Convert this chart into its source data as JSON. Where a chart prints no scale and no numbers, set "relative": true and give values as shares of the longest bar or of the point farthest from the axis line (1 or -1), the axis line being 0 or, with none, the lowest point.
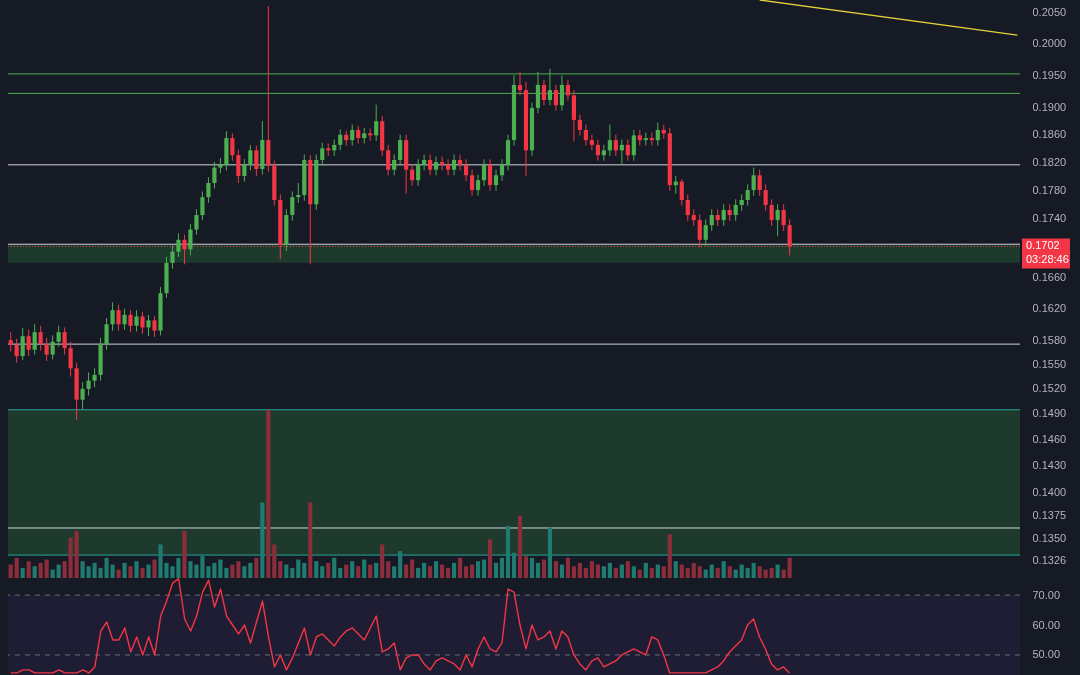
{
  "chart_data": [
    {
      "type": "candlestick",
      "log": true,
      "tick_labels": "y",
      "categories": [
        null,
        null,
        null,
        null,
        null,
        null,
        null,
        null,
        null,
        null,
        null,
        null,
        null,
        null,
        null,
        null,
        null,
        null,
        null,
        null,
        null,
        null,
        null,
        null,
        null,
        null,
        null,
        null,
        null,
        null,
        null,
        null,
        null,
        null,
        null,
        null,
        null,
        null,
        null,
        null,
        null,
        null,
        null,
        null,
        null,
        null,
        null,
        null,
        null,
        null,
        null,
        null,
        null,
        null,
        null,
        null,
        null,
        null,
        null,
        null,
        null,
        null,
        null,
        null,
        null,
        null,
        null,
        null,
        null,
        null,
        null,
        null,
        null,
        null,
        null,
        null,
        null,
        null,
        null,
        null,
        null,
        null,
        null,
        null,
        null,
        null,
        null,
        null,
        null,
        null,
        null,
        null,
        null,
        null,
        null,
        null,
        null,
        null,
        null,
        null,
        null,
        null,
        null,
        null,
        null,
        null,
        null,
        null,
        null,
        null,
        null,
        null,
        null,
        null,
        null,
        null,
        null,
        null,
        null,
        null,
        null,
        null,
        null,
        null,
        null,
        null,
        null,
        null,
        null,
        null,
        null,
        null,
        null,
        null,
        null,
        null,
        null,
        null,
        null,
        null,
        null,
        null,
        null,
        null,
        null,
        null,
        null,
        null,
        null,
        null,
        null,
        null,
        null,
        null,
        null,
        null,
        null,
        null,
        null,
        null,
        null,
        null,
        null,
        null,
        null,
        null,
        null,
        null,
        null
      ],
      "ohlc": [
        [
          0.158,
          0.159,
          0.1566,
          0.1574
        ],
        [
          0.1574,
          0.1582,
          0.1552,
          0.156
        ],
        [
          0.156,
          0.1595,
          0.1555,
          0.1585
        ],
        [
          0.1585,
          0.1593,
          0.156,
          0.1568
        ],
        [
          0.1568,
          0.16,
          0.1562,
          0.159
        ],
        [
          0.159,
          0.1598,
          0.1567,
          0.1575
        ],
        [
          0.1575,
          0.1583,
          0.1554,
          0.1562
        ],
        [
          0.1562,
          0.1586,
          0.1556,
          0.1578
        ],
        [
          0.1578,
          0.1598,
          0.1572,
          0.159
        ],
        [
          0.159,
          0.1596,
          0.1562,
          0.157
        ],
        [
          0.157,
          0.1578,
          0.1535,
          0.1545
        ],
        [
          0.1545,
          0.1552,
          0.1483,
          0.1507
        ],
        [
          0.1507,
          0.1528,
          0.1495,
          0.152
        ],
        [
          0.152,
          0.154,
          0.1512,
          0.153
        ],
        [
          0.153,
          0.1545,
          0.1522,
          0.1537
        ],
        [
          0.1537,
          0.1583,
          0.153,
          0.1575
        ],
        [
          0.1575,
          0.1608,
          0.1568,
          0.16
        ],
        [
          0.16,
          0.1628,
          0.1592,
          0.1618
        ],
        [
          0.1618,
          0.1625,
          0.1592,
          0.16
        ],
        [
          0.16,
          0.162,
          0.1593,
          0.1612
        ],
        [
          0.1612,
          0.1618,
          0.159,
          0.1598
        ],
        [
          0.1598,
          0.1618,
          0.1591,
          0.161
        ],
        [
          0.161,
          0.1616,
          0.1588,
          0.1596
        ],
        [
          0.1596,
          0.1612,
          0.1585,
          0.1605
        ],
        [
          0.1605,
          0.161,
          0.1584,
          0.1592
        ],
        [
          0.1592,
          0.1648,
          0.1586,
          0.164
        ],
        [
          0.164,
          0.1688,
          0.1634,
          0.168
        ],
        [
          0.168,
          0.1703,
          0.1672,
          0.1695
        ],
        [
          0.1695,
          0.172,
          0.1688,
          0.1711
        ],
        [
          0.1711,
          0.1718,
          0.1678,
          0.1698
        ],
        [
          0.1698,
          0.1733,
          0.169,
          0.1725
        ],
        [
          0.1725,
          0.1753,
          0.1718,
          0.1745
        ],
        [
          0.1745,
          0.1778,
          0.1738,
          0.177
        ],
        [
          0.177,
          0.1798,
          0.1762,
          0.179
        ],
        [
          0.179,
          0.182,
          0.1782,
          0.1812
        ],
        [
          0.1812,
          0.1826,
          0.1804,
          0.1816
        ],
        [
          0.1816,
          0.1865,
          0.1808,
          0.1855
        ],
        [
          0.1855,
          0.1862,
          0.1822,
          0.183
        ],
        [
          0.183,
          0.1838,
          0.179,
          0.18
        ],
        [
          0.18,
          0.1824,
          0.1792,
          0.1816
        ],
        [
          0.1816,
          0.1845,
          0.1808,
          0.1837
        ],
        [
          0.1837,
          0.1844,
          0.18,
          0.181
        ],
        [
          0.181,
          0.188,
          0.1802,
          0.1852
        ],
        [
          0.1852,
          0.206,
          0.1806,
          0.1815
        ],
        [
          0.1815,
          0.1822,
          0.1758,
          0.1766
        ],
        [
          0.1766,
          0.1774,
          0.1685,
          0.1704
        ],
        [
          0.1704,
          0.1753,
          0.1696,
          0.1745
        ],
        [
          0.1745,
          0.1778,
          0.1737,
          0.177
        ],
        [
          0.177,
          0.179,
          0.1762,
          0.1773
        ],
        [
          0.1773,
          0.1831,
          0.1765,
          0.1823
        ],
        [
          0.1823,
          0.183,
          0.1678,
          0.176
        ],
        [
          0.176,
          0.1831,
          0.1752,
          0.1823
        ],
        [
          0.1823,
          0.1848,
          0.1815,
          0.184
        ],
        [
          0.184,
          0.1847,
          0.1829,
          0.1837
        ],
        [
          0.1837,
          0.1853,
          0.1829,
          0.1845
        ],
        [
          0.1845,
          0.1868,
          0.1837,
          0.186
        ],
        [
          0.186,
          0.1866,
          0.1844,
          0.1852
        ],
        [
          0.1852,
          0.1875,
          0.1844,
          0.1867
        ],
        [
          0.1867,
          0.1873,
          0.1847,
          0.1855
        ],
        [
          0.1855,
          0.187,
          0.1847,
          0.1862
        ],
        [
          0.1862,
          0.1869,
          0.1851,
          0.1859
        ],
        [
          0.1859,
          0.1905,
          0.1851,
          0.188
        ],
        [
          0.188,
          0.1888,
          0.1829,
          0.1837
        ],
        [
          0.1837,
          0.1845,
          0.1801,
          0.1809
        ],
        [
          0.1809,
          0.1831,
          0.1801,
          0.1823
        ],
        [
          0.1823,
          0.186,
          0.1815,
          0.1852
        ],
        [
          0.1852,
          0.186,
          0.1775,
          0.1809
        ],
        [
          0.1809,
          0.1817,
          0.1786,
          0.1794
        ],
        [
          0.1794,
          0.1824,
          0.1786,
          0.1816
        ],
        [
          0.1816,
          0.1831,
          0.1808,
          0.1823
        ],
        [
          0.1823,
          0.1831,
          0.1801,
          0.1809
        ],
        [
          0.1809,
          0.1828,
          0.1801,
          0.182
        ],
        [
          0.182,
          0.1828,
          0.1808,
          0.1816
        ],
        [
          0.1816,
          0.1824,
          0.1801,
          0.1809
        ],
        [
          0.1809,
          0.1831,
          0.1801,
          0.1823
        ],
        [
          0.1823,
          0.1831,
          0.1808,
          0.1816
        ],
        [
          0.1816,
          0.1824,
          0.1793,
          0.1801
        ],
        [
          0.1801,
          0.1809,
          0.1772,
          0.178
        ],
        [
          0.178,
          0.1802,
          0.1772,
          0.1794
        ],
        [
          0.1794,
          0.1824,
          0.1786,
          0.1816
        ],
        [
          0.1816,
          0.1824,
          0.1779,
          0.1787
        ],
        [
          0.1787,
          0.1809,
          0.1779,
          0.1801
        ],
        [
          0.1801,
          0.1824,
          0.1793,
          0.1816
        ],
        [
          0.1816,
          0.186,
          0.1808,
          0.1852
        ],
        [
          0.1852,
          0.195,
          0.1844,
          0.1935
        ],
        [
          0.1935,
          0.1955,
          0.1919,
          0.1927
        ],
        [
          0.1927,
          0.194,
          0.18,
          0.1837
        ],
        [
          0.1837,
          0.1908,
          0.1829,
          0.19
        ],
        [
          0.19,
          0.1955,
          0.1892,
          0.1935
        ],
        [
          0.1935,
          0.1943,
          0.1904,
          0.1912
        ],
        [
          0.1912,
          0.196,
          0.1904,
          0.1927
        ],
        [
          0.1927,
          0.1935,
          0.1896,
          0.1904
        ],
        [
          0.1904,
          0.195,
          0.1896,
          0.1935
        ],
        [
          0.1935,
          0.1943,
          0.1911,
          0.1919
        ],
        [
          0.1919,
          0.1927,
          0.185,
          0.1882
        ],
        [
          0.1882,
          0.189,
          0.1859,
          0.1867
        ],
        [
          0.1867,
          0.1875,
          0.1844,
          0.1852
        ],
        [
          0.1852,
          0.186,
          0.1837,
          0.1845
        ],
        [
          0.1845,
          0.1853,
          0.1822,
          0.183
        ],
        [
          0.183,
          0.1845,
          0.1822,
          0.1837
        ],
        [
          0.1837,
          0.1875,
          0.1829,
          0.1852
        ],
        [
          0.1852,
          0.186,
          0.1829,
          0.1837
        ],
        [
          0.1837,
          0.1853,
          0.1816,
          0.1845
        ],
        [
          0.1845,
          0.1853,
          0.1822,
          0.183
        ],
        [
          0.183,
          0.1867,
          0.1822,
          0.1859
        ],
        [
          0.1859,
          0.1867,
          0.1844,
          0.1852
        ],
        [
          0.1852,
          0.1863,
          0.1844,
          0.1855
        ],
        [
          0.1855,
          0.1863,
          0.1844,
          0.1852
        ],
        [
          0.1852,
          0.1878,
          0.1844,
          0.1867
        ],
        [
          0.1867,
          0.1875,
          0.1854,
          0.1862
        ],
        [
          0.1862,
          0.187,
          0.1779,
          0.1787
        ],
        [
          0.1787,
          0.18,
          0.1775,
          0.1792
        ],
        [
          0.1792,
          0.1795,
          0.1758,
          0.1766
        ],
        [
          0.1766,
          0.1774,
          0.1737,
          0.1745
        ],
        [
          0.1745,
          0.1753,
          0.173,
          0.1738
        ],
        [
          0.1738,
          0.1746,
          0.1701,
          0.1711
        ],
        [
          0.1711,
          0.1739,
          0.1703,
          0.1731
        ],
        [
          0.1731,
          0.1753,
          0.1723,
          0.1745
        ],
        [
          0.1745,
          0.1753,
          0.173,
          0.1738
        ],
        [
          0.1738,
          0.176,
          0.173,
          0.1752
        ],
        [
          0.1752,
          0.176,
          0.1737,
          0.1745
        ],
        [
          0.1745,
          0.1767,
          0.1737,
          0.1759
        ],
        [
          0.1759,
          0.1774,
          0.1751,
          0.1766
        ],
        [
          0.1766,
          0.1788,
          0.1758,
          0.178
        ],
        [
          0.178,
          0.1812,
          0.1772,
          0.1801
        ],
        [
          0.1801,
          0.1809,
          0.1772,
          0.178
        ],
        [
          0.178,
          0.1788,
          0.1751,
          0.1759
        ],
        [
          0.1759,
          0.1767,
          0.173,
          0.1738
        ],
        [
          0.1738,
          0.176,
          0.1716,
          0.1752
        ],
        [
          0.1752,
          0.176,
          0.1723,
          0.1731
        ],
        [
          0.1731,
          0.1739,
          0.169,
          0.1702
        ],
        null,
        null,
        null,
        null,
        null,
        null,
        null,
        null,
        null,
        null,
        null,
        null,
        null,
        null,
        null,
        null,
        null,
        null,
        null,
        null,
        null,
        null,
        null,
        null,
        null,
        null,
        null,
        null,
        null,
        null,
        null,
        null,
        null,
        null,
        null,
        null,
        null,
        null
      ],
      "colors": [
        "#f23645",
        "#f23645",
        "#4caf50",
        "#f23645",
        "#4caf50",
        "#f23645",
        "#f23645",
        "#4caf50",
        "#4caf50",
        "#f23645",
        "#f23645",
        "#f23645",
        "#4caf50",
        "#4caf50",
        "#4caf50",
        "#4caf50",
        "#4caf50",
        "#4caf50",
        "#f23645",
        "#4caf50",
        "#f23645",
        "#4caf50",
        "#f23645",
        "#4caf50",
        "#f23645",
        "#4caf50",
        "#4caf50",
        "#4caf50",
        "#4caf50",
        "#f23645",
        "#4caf50",
        "#4caf50",
        "#4caf50",
        "#4caf50",
        "#4caf50",
        "#4caf50",
        "#4caf50",
        "#f23645",
        "#f23645",
        "#4caf50",
        "#4caf50",
        "#f23645",
        "#4caf50",
        "#f23645",
        "#f23645",
        "#f23645",
        "#4caf50",
        "#4caf50",
        "#4caf50",
        "#4caf50",
        "#f23645",
        "#4caf50",
        "#4caf50",
        "#f23645",
        "#4caf50",
        "#4caf50",
        "#f23645",
        "#4caf50",
        "#f23645",
        "#4caf50",
        "#f23645",
        "#4caf50",
        "#f23645",
        "#f23645",
        "#4caf50",
        "#4caf50",
        "#f23645",
        "#f23645",
        "#4caf50",
        "#4caf50",
        "#f23645",
        "#4caf50",
        "#f23645",
        "#f23645",
        "#4caf50",
        "#f23645",
        "#f23645",
        "#f23645",
        "#4caf50",
        "#4caf50",
        "#f23645",
        "#4caf50",
        "#4caf50",
        "#4caf50",
        "#4caf50",
        "#f23645",
        "#f23645",
        "#4caf50",
        "#4caf50",
        "#f23645",
        "#4caf50",
        "#f23645",
        "#4caf50",
        "#f23645",
        "#f23645",
        "#f23645",
        "#f23645",
        "#f23645",
        "#f23645",
        "#4caf50",
        "#4caf50",
        "#f23645",
        "#4caf50",
        "#f23645",
        "#4caf50",
        "#f23645",
        "#4caf50",
        "#f23645",
        "#4caf50",
        "#f23645",
        "#f23645",
        "#4caf50",
        "#f23645",
        "#f23645",
        "#f23645",
        "#f23645",
        "#4caf50",
        "#4caf50",
        "#f23645",
        "#4caf50",
        "#f23645",
        "#4caf50",
        "#4caf50",
        "#4caf50",
        "#4caf50",
        "#f23645",
        "#f23645",
        "#f23645",
        "#4caf50",
        "#f23645",
        "#f23645",
        null,
        null,
        null,
        null,
        null,
        null,
        null,
        null,
        null,
        null,
        null,
        null,
        null,
        null,
        null,
        null,
        null,
        null,
        null,
        null,
        null,
        null,
        null,
        null,
        null,
        null,
        null,
        null,
        null,
        null,
        null,
        null,
        null,
        null,
        null,
        null,
        null,
        null
      ],
      "series": [
        {
          "type": "line",
          "color": "#e6d33a",
          "values": [
            null,
            null,
            null,
            null,
            null,
            null,
            null,
            null,
            null,
            null,
            null,
            null,
            null,
            null,
            null,
            null,
            null,
            null,
            null,
            null,
            null,
            null,
            null,
            null,
            null,
            null,
            null,
            null,
            null,
            null,
            null,
            null,
            null,
            null,
            null,
            null,
            null,
            null,
            null,
            null,
            null,
            null,
            null,
            null,
            null,
            null,
            null,
            null,
            null,
            null,
            null,
            null,
            null,
            null,
            null,
            null,
            null,
            null,
            null,
            null,
            null,
            null,
            null,
            null,
            null,
            null,
            null,
            null,
            null,
            null,
            null,
            null,
            null,
            null,
            null,
            null,
            null,
            null,
            null,
            null,
            null,
            null,
            null,
            null,
            null,
            null,
            null,
            null,
            null,
            null,
            null,
            null,
            null,
            null,
            null,
            null,
            null,
            null,
            null,
            null,
            null,
            null,
            null,
            null,
            null,
            null,
            null,
            null,
            null,
            null,
            null,
            null,
            null,
            null,
            null,
            null,
            null,
            null,
            null,
            null,
            null,
            null,
            null,
            null,
            null,
            0.207,
            null,
            null,
            null,
            null,
            null,
            null,
            null,
            null,
            null,
            null,
            null,
            null,
            null,
            null,
            null,
            null,
            null,
            null,
            null,
            null,
            null,
            null,
            null,
            null,
            null,
            null,
            null,
            null,
            null,
            null,
            null,
            null,
            null,
            null,
            null,
            null,
            null,
            null,
            null,
            null,
            null,
            null,
            0.2013
          ]
        }
      ],
      "ylim": [
        0.1308,
        0.207
      ],
      "yticks": [
        {
          "value": 0.205,
          "label": "0.2050"
        },
        {
          "value": 0.2,
          "label": "0.2000"
        },
        {
          "value": 0.195,
          "label": "0.1950"
        },
        {
          "value": 0.19,
          "label": "0.1900"
        },
        {
          "value": 0.186,
          "label": "0.1860"
        },
        {
          "value": 0.182,
          "label": "0.1820"
        },
        {
          "value": 0.178,
          "label": "0.1780"
        },
        {
          "value": 0.174,
          "label": "0.1740"
        },
        {
          "value": 0.166,
          "label": "0.1660"
        },
        {
          "value": 0.162,
          "label": "0.1620"
        },
        {
          "value": 0.158,
          "label": "0.1580"
        },
        {
          "value": 0.155,
          "label": "0.1550"
        },
        {
          "value": 0.152,
          "label": "0.1520"
        },
        {
          "value": 0.149,
          "label": "0.1490"
        },
        {
          "value": 0.146,
          "label": "0.1460"
        },
        {
          "value": 0.143,
          "label": "0.1430"
        },
        {
          "value": 0.14,
          "label": "0.1400"
        },
        {
          "value": 0.1375,
          "label": "0.1375"
        },
        {
          "value": 0.135,
          "label": "0.1350"
        },
        {
          "value": 0.1326,
          "label": "0.1326"
        }
      ],
      "bands": [
        {
          "axis": "y",
          "from": 0.1332,
          "to": 0.1495,
          "color": "#1e3a2c"
        },
        {
          "axis": "y",
          "from": 0.168,
          "to": 0.1704,
          "color": "#1e3a2c"
        }
      ],
      "ref_lines": [
        {
          "axis": "y",
          "value": 0.1952,
          "color": "#4caf50"
        },
        {
          "axis": "y",
          "value": 0.1922,
          "color": "#4caf50"
        },
        {
          "axis": "y",
          "value": 0.1816,
          "color": "#d1d4dc"
        },
        {
          "axis": "y",
          "value": 0.1705,
          "color": "#d1d4dc"
        },
        {
          "axis": "y",
          "value": 0.1575,
          "color": "#d1d4dc"
        },
        {
          "axis": "y",
          "value": 0.1361,
          "color": "#d1d4dc"
        },
        {
          "axis": "y",
          "value": 0.1495,
          "color": "#26a69a"
        },
        {
          "axis": "y",
          "value": 0.1332,
          "color": "#26a69a"
        },
        {
          "axis": "y",
          "value": 0.1702,
          "color": "#f23645",
          "line_style": "dotted",
          "label": "0.1702"
        }
      ],
      "annotations": [
        "03:28:46"
      ]
    },
    {
      "type": "bar",
      "relative": true,
      "categories": [
        null,
        null,
        null,
        null,
        null,
        null,
        null,
        null,
        null,
        null,
        null,
        null,
        null,
        null,
        null,
        null,
        null,
        null,
        null,
        null,
        null,
        null,
        null,
        null,
        null,
        null,
        null,
        null,
        null,
        null,
        null,
        null,
        null,
        null,
        null,
        null,
        null,
        null,
        null,
        null,
        null,
        null,
        null,
        null,
        null,
        null,
        null,
        null,
        null,
        null,
        null,
        null,
        null,
        null,
        null,
        null,
        null,
        null,
        null,
        null,
        null,
        null,
        null,
        null,
        null,
        null,
        null,
        null,
        null,
        null,
        null,
        null,
        null,
        null,
        null,
        null,
        null,
        null,
        null,
        null,
        null,
        null,
        null,
        null,
        null,
        null,
        null,
        null,
        null,
        null,
        null,
        null,
        null,
        null,
        null,
        null,
        null,
        null,
        null,
        null,
        null,
        null,
        null,
        null,
        null,
        null,
        null,
        null,
        null,
        null,
        null,
        null,
        null,
        null,
        null,
        null,
        null,
        null,
        null,
        null,
        null,
        null,
        null,
        null,
        null,
        null,
        null,
        null,
        null,
        null,
        null,
        null,
        null,
        null,
        null,
        null,
        null,
        null,
        null,
        null,
        null,
        null,
        null,
        null,
        null,
        null,
        null,
        null,
        null,
        null,
        null,
        null,
        null,
        null,
        null,
        null,
        null,
        null,
        null,
        null,
        null,
        null,
        null,
        null,
        null,
        null,
        null,
        null,
        null
      ],
      "values": [
        0.08,
        0.12,
        0.06,
        0.1,
        0.07,
        0.09,
        0.11,
        0.05,
        0.08,
        0.1,
        0.24,
        0.28,
        0.1,
        0.07,
        0.09,
        0.06,
        0.12,
        0.08,
        0.05,
        0.09,
        0.07,
        0.1,
        0.06,
        0.08,
        0.11,
        0.2,
        0.09,
        0.07,
        0.12,
        0.28,
        0.1,
        0.08,
        0.13,
        0.07,
        0.09,
        0.11,
        0.06,
        0.08,
        0.1,
        0.07,
        0.09,
        0.12,
        0.45,
        1,
        0.2,
        0.1,
        0.08,
        0.06,
        0.11,
        0.09,
        0.45,
        0.1,
        0.07,
        0.09,
        0.12,
        0.06,
        0.08,
        0.1,
        0.07,
        0.11,
        0.08,
        0.09,
        0.2,
        0.1,
        0.07,
        0.16,
        0.08,
        0.11,
        0.06,
        0.09,
        0.07,
        0.1,
        0.08,
        0.06,
        0.09,
        0.12,
        0.07,
        0.08,
        0.1,
        0.11,
        0.23,
        0.09,
        0.12,
        0.31,
        0.15,
        0.37,
        0.13,
        0.12,
        0.09,
        0.11,
        0.3,
        0.1,
        0.08,
        0.12,
        0.07,
        0.09,
        0.06,
        0.1,
        0.08,
        0.07,
        0.09,
        0.06,
        0.08,
        0.1,
        0.07,
        0.05,
        0.09,
        0.06,
        0.08,
        0.07,
        0.26,
        0.1,
        0.08,
        0.06,
        0.09,
        0.07,
        0.05,
        0.08,
        0.06,
        0.1,
        0.07,
        0.05,
        0.08,
        0.06,
        0.09,
        0.07,
        0.05,
        0.06,
        0.08,
        0.05,
        0.12,
        null,
        null,
        null,
        null,
        null,
        null,
        null,
        null,
        null,
        null,
        null,
        null,
        null,
        null,
        null,
        null,
        null,
        null,
        null,
        null,
        null,
        null,
        null,
        null,
        null,
        null,
        null,
        null,
        null,
        null,
        null,
        null,
        null,
        null,
        null,
        null,
        null,
        null
      ],
      "colors": [
        "#8b2d3a",
        "#8b2d3a",
        "#1f7a70",
        "#8b2d3a",
        "#1f7a70",
        "#8b2d3a",
        "#8b2d3a",
        "#1f7a70",
        "#1f7a70",
        "#8b2d3a",
        "#8b2d3a",
        "#8b2d3a",
        "#1f7a70",
        "#1f7a70",
        "#1f7a70",
        "#1f7a70",
        "#1f7a70",
        "#1f7a70",
        "#8b2d3a",
        "#1f7a70",
        "#8b2d3a",
        "#1f7a70",
        "#8b2d3a",
        "#1f7a70",
        "#8b2d3a",
        "#1f7a70",
        "#1f7a70",
        "#1f7a70",
        "#1f7a70",
        "#8b2d3a",
        "#1f7a70",
        "#1f7a70",
        "#1f7a70",
        "#1f7a70",
        "#1f7a70",
        "#1f7a70",
        "#1f7a70",
        "#8b2d3a",
        "#8b2d3a",
        "#1f7a70",
        "#1f7a70",
        "#8b2d3a",
        "#1f7a70",
        "#8b2d3a",
        "#8b2d3a",
        "#8b2d3a",
        "#1f7a70",
        "#1f7a70",
        "#1f7a70",
        "#1f7a70",
        "#8b2d3a",
        "#1f7a70",
        "#1f7a70",
        "#8b2d3a",
        "#1f7a70",
        "#1f7a70",
        "#8b2d3a",
        "#1f7a70",
        "#8b2d3a",
        "#1f7a70",
        "#8b2d3a",
        "#1f7a70",
        "#8b2d3a",
        "#8b2d3a",
        "#1f7a70",
        "#1f7a70",
        "#8b2d3a",
        "#8b2d3a",
        "#1f7a70",
        "#1f7a70",
        "#8b2d3a",
        "#1f7a70",
        "#8b2d3a",
        "#8b2d3a",
        "#1f7a70",
        "#8b2d3a",
        "#8b2d3a",
        "#8b2d3a",
        "#1f7a70",
        "#1f7a70",
        "#8b2d3a",
        "#1f7a70",
        "#1f7a70",
        "#1f7a70",
        "#1f7a70",
        "#8b2d3a",
        "#8b2d3a",
        "#1f7a70",
        "#1f7a70",
        "#8b2d3a",
        "#1f7a70",
        "#8b2d3a",
        "#1f7a70",
        "#8b2d3a",
        "#8b2d3a",
        "#8b2d3a",
        "#8b2d3a",
        "#8b2d3a",
        "#8b2d3a",
        "#1f7a70",
        "#1f7a70",
        "#8b2d3a",
        "#1f7a70",
        "#8b2d3a",
        "#1f7a70",
        "#8b2d3a",
        "#1f7a70",
        "#8b2d3a",
        "#1f7a70",
        "#8b2d3a",
        "#8b2d3a",
        "#1f7a70",
        "#8b2d3a",
        "#8b2d3a",
        "#8b2d3a",
        "#8b2d3a",
        "#1f7a70",
        "#1f7a70",
        "#8b2d3a",
        "#1f7a70",
        "#8b2d3a",
        "#1f7a70",
        "#1f7a70",
        "#1f7a70",
        "#1f7a70",
        "#8b2d3a",
        "#8b2d3a",
        "#8b2d3a",
        "#1f7a70",
        "#8b2d3a",
        "#8b2d3a",
        null,
        null,
        null,
        null,
        null,
        null,
        null,
        null,
        null,
        null,
        null,
        null,
        null,
        null,
        null,
        null,
        null,
        null,
        null,
        null,
        null,
        null,
        null,
        null,
        null,
        null,
        null,
        null,
        null,
        null,
        null,
        null,
        null,
        null,
        null,
        null,
        null,
        null
      ]
    },
    {
      "type": "line",
      "tick_labels": "y",
      "categories": [
        null,
        null,
        null,
        null,
        null,
        null,
        null,
        null,
        null,
        null,
        null,
        null,
        null,
        null,
        null,
        null,
        null,
        null,
        null,
        null,
        null,
        null,
        null,
        null,
        null,
        null,
        null,
        null,
        null,
        null,
        null,
        null,
        null,
        null,
        null,
        null,
        null,
        null,
        null,
        null,
        null,
        null,
        null,
        null,
        null,
        null,
        null,
        null,
        null,
        null,
        null,
        null,
        null,
        null,
        null,
        null,
        null,
        null,
        null,
        null,
        null,
        null,
        null,
        null,
        null,
        null,
        null,
        null,
        null,
        null,
        null,
        null,
        null,
        null,
        null,
        null,
        null,
        null,
        null,
        null,
        null,
        null,
        null,
        null,
        null,
        null,
        null,
        null,
        null,
        null,
        null,
        null,
        null,
        null,
        null,
        null,
        null,
        null,
        null,
        null,
        null,
        null,
        null,
        null,
        null,
        null,
        null,
        null,
        null,
        null,
        null,
        null,
        null,
        null,
        null,
        null,
        null,
        null,
        null,
        null,
        null,
        null,
        null,
        null,
        null,
        null,
        null,
        null,
        null,
        null,
        null,
        null,
        null,
        null,
        null,
        null,
        null,
        null,
        null,
        null,
        null,
        null,
        null,
        null,
        null,
        null,
        null,
        null,
        null,
        null,
        null,
        null,
        null,
        null,
        null,
        null,
        null,
        null,
        null,
        null,
        null,
        null,
        null,
        null,
        null,
        null,
        null,
        null,
        null
      ],
      "series": [
        {
          "color": "#f23645",
          "values": [
            44,
            44,
            45,
            45,
            44,
            44,
            44,
            44,
            45,
            44,
            44,
            44,
            45,
            44,
            46,
            58,
            61,
            55,
            55,
            59,
            51,
            56,
            50,
            56,
            50,
            63,
            68,
            74,
            75.5,
            62,
            58,
            63,
            71,
            75,
            66,
            72,
            63,
            60,
            57,
            60,
            54,
            61,
            68,
            56,
            46,
            50,
            45,
            49,
            54,
            59,
            50,
            56,
            57,
            55,
            53,
            56,
            58,
            59,
            57,
            55,
            59,
            63,
            51,
            52,
            54,
            45,
            49,
            50,
            50,
            47,
            45,
            48,
            49,
            48,
            47,
            45,
            50,
            46,
            52,
            56,
            52,
            51,
            54,
            72,
            71,
            60,
            52,
            60,
            55,
            56,
            58,
            52,
            58,
            56,
            50,
            47,
            45,
            48,
            49,
            46,
            47,
            48,
            50,
            51,
            52,
            51,
            50,
            56,
            55,
            50,
            44,
            44,
            44,
            44,
            44,
            44,
            44,
            45,
            46,
            48,
            51,
            53,
            55,
            60,
            62,
            56,
            52,
            47,
            45,
            46,
            44,
            null,
            null,
            null,
            null,
            null,
            null,
            null,
            null,
            null,
            null,
            null,
            null,
            null,
            null,
            null,
            null,
            null,
            null,
            null,
            null,
            null,
            null,
            null,
            null,
            null,
            null,
            null,
            null,
            null,
            null,
            null,
            null,
            null,
            null,
            null,
            null,
            null,
            null
          ]
        }
      ],
      "ylim": [
        43.3,
        75.7
      ],
      "yticks": [
        {
          "value": 50,
          "label": "50.00"
        },
        {
          "value": 60,
          "label": "60.00"
        },
        {
          "value": 70,
          "label": "70.00"
        }
      ],
      "bands": [
        {
          "axis": "y",
          "from": 43.3,
          "to": 70,
          "color": "#1f1d33"
        }
      ],
      "ref_lines": [
        {
          "axis": "y",
          "value": 70,
          "color": "#6a6d78",
          "line_style": "dashed"
        },
        {
          "axis": "y",
          "value": 50,
          "color": "#6a6d78",
          "line_style": "dashed"
        }
      ]
    }
  ]
}
